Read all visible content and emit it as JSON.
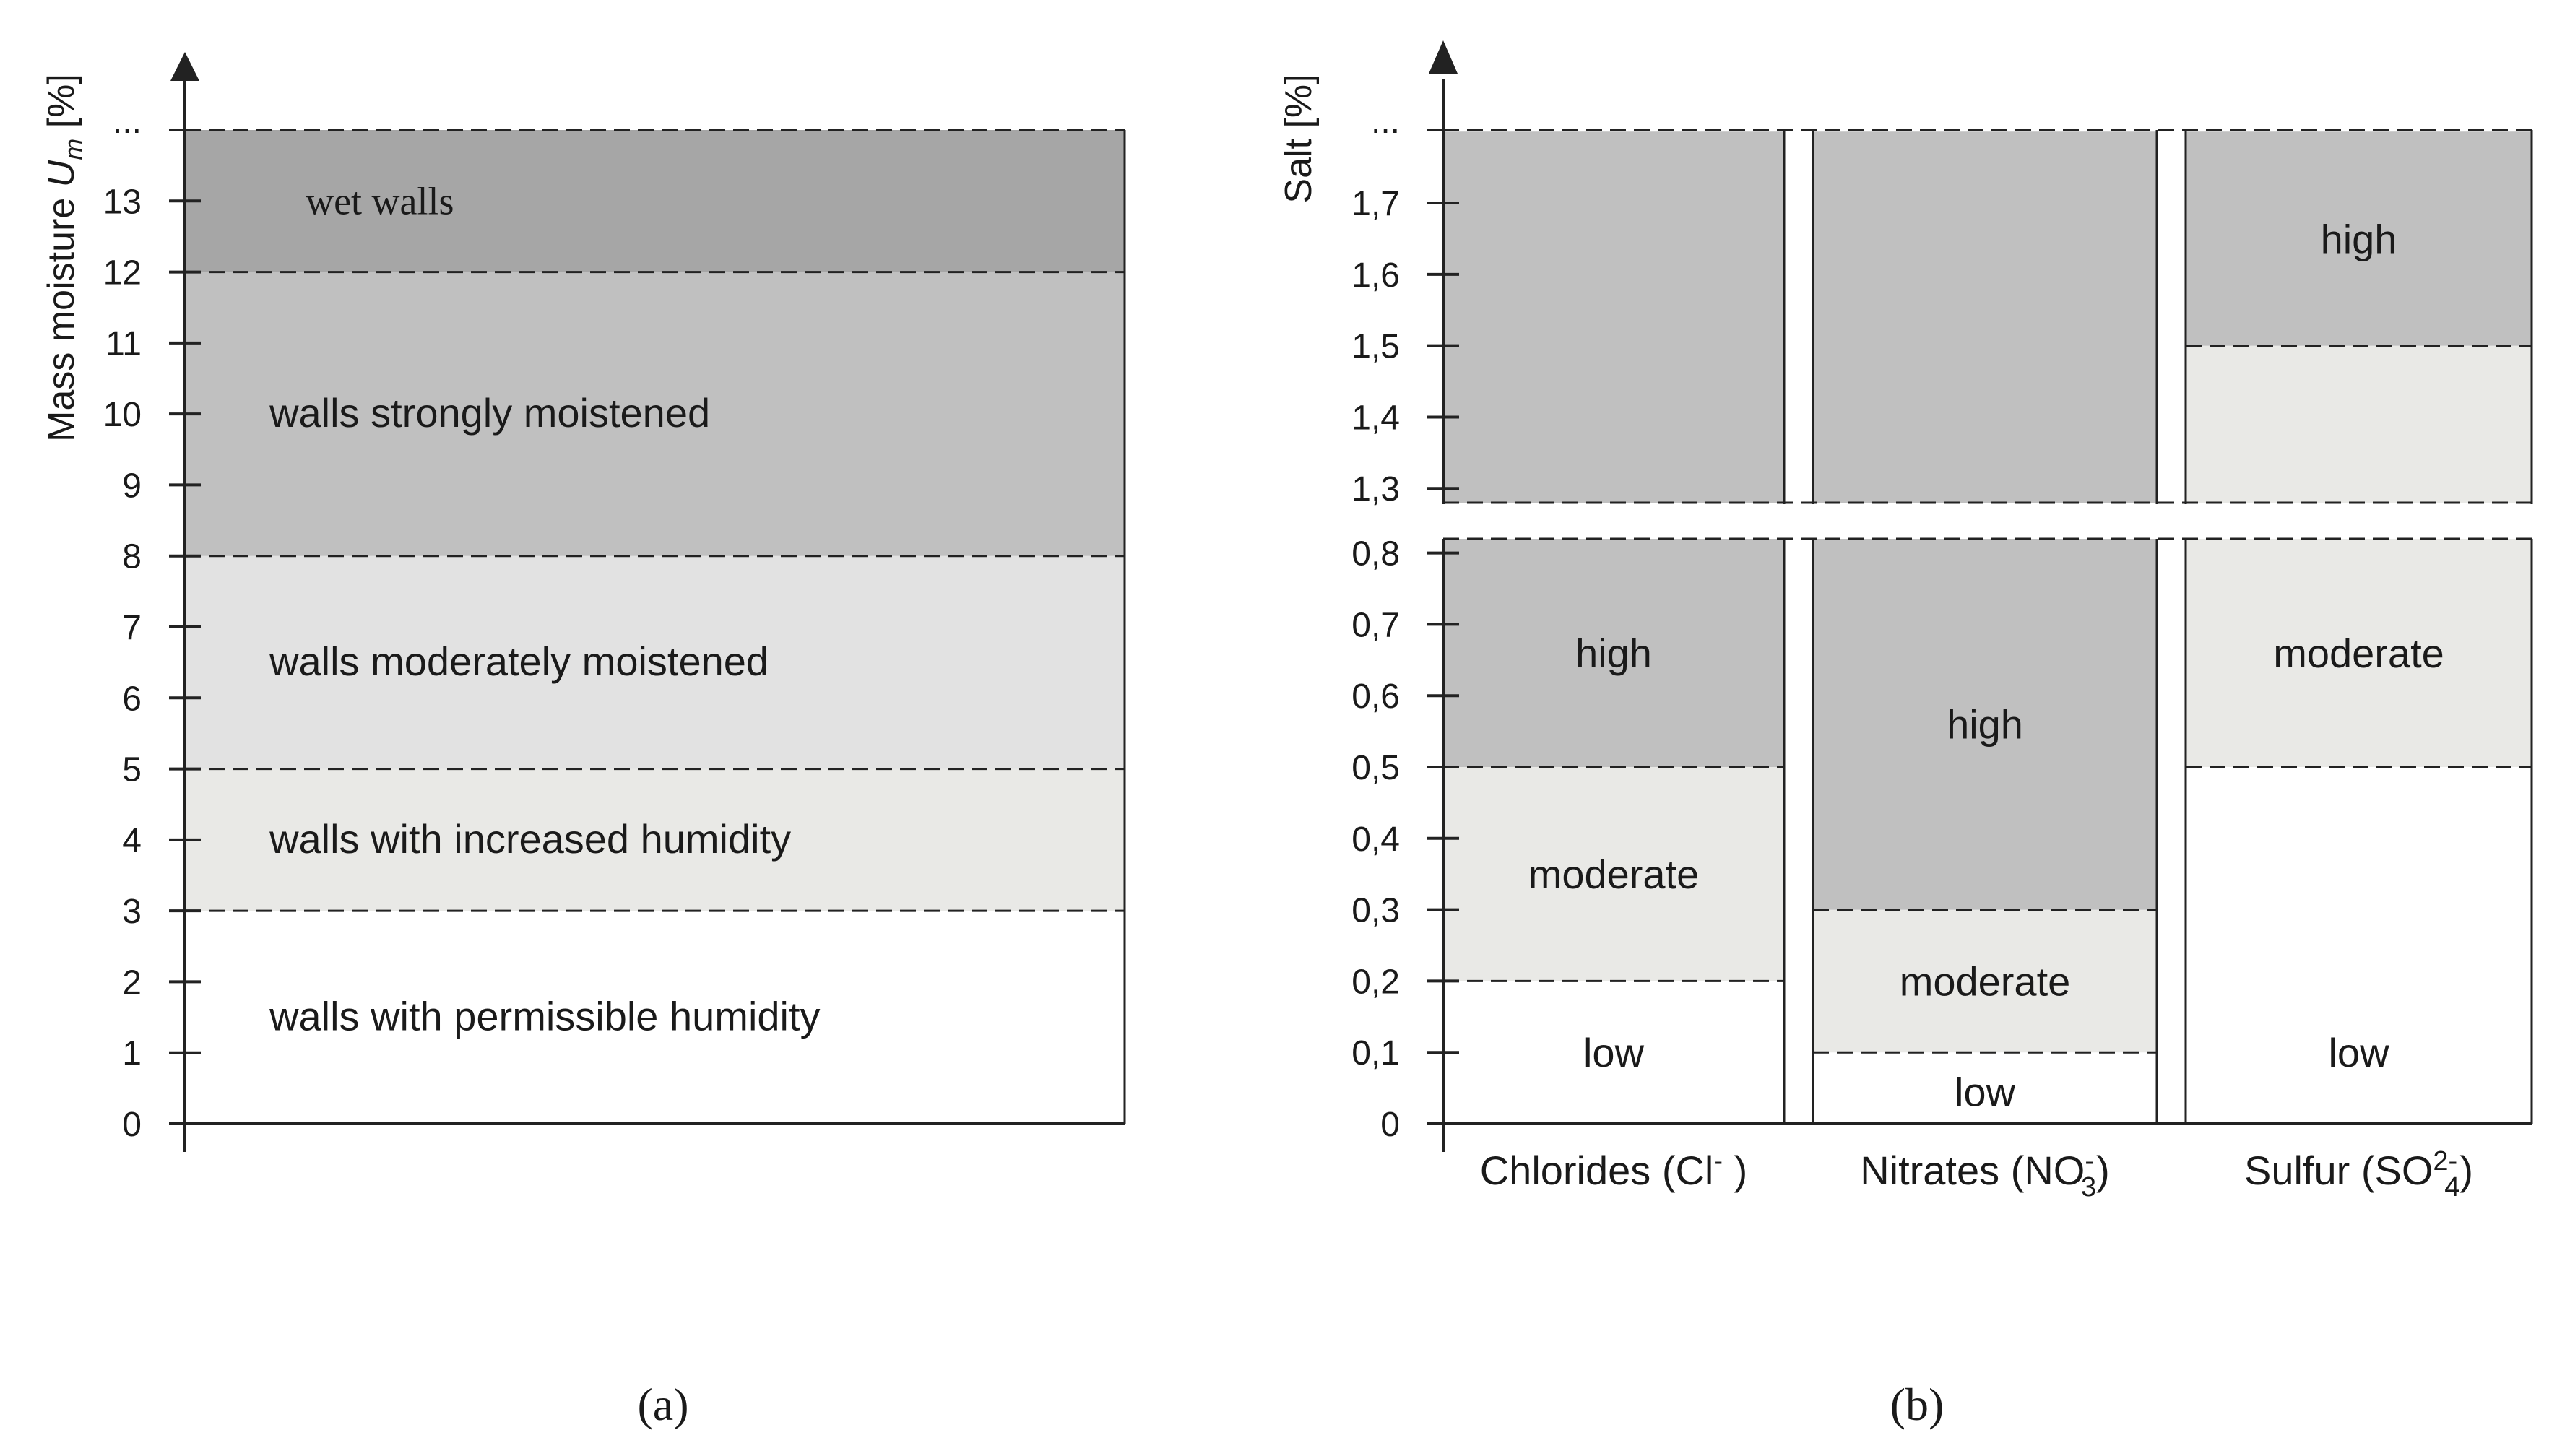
{
  "chart_data": [
    {
      "type": "stacked-range",
      "panel_label": "(a)",
      "ylabel_main": "Mass moisture ",
      "ylabel_var": "U",
      "ylabel_sub": "m",
      "ylabel_unit": " [%]",
      "ylim": [
        0,
        14
      ],
      "yticks": [
        "0",
        "1",
        "2",
        "3",
        "4",
        "5",
        "6",
        "7",
        "8",
        "9",
        "10",
        "11",
        "12",
        "13",
        "..."
      ],
      "bands": [
        {
          "label": "walls with permissible humidity",
          "from": 0,
          "to": 3,
          "color": "#ffffff"
        },
        {
          "label": "walls with increased humidity",
          "from": 3,
          "to": 5,
          "color": "#e9e9e6"
        },
        {
          "label": "walls moderately moistened",
          "from": 5,
          "to": 8,
          "color": "#e2e2e2"
        },
        {
          "label": "walls strongly moistened",
          "from": 8,
          "to": 12,
          "color": "#c0c0c0"
        },
        {
          "label": "wet walls",
          "from": 12,
          "to": 14,
          "color": "#a6a6a6"
        }
      ]
    },
    {
      "type": "stacked-range-broken-axis",
      "panel_label": "(b)",
      "ylabel": "Salt [%]",
      "yticks_lower": [
        "0",
        "0,1",
        "0,2",
        "0,3",
        "0,4",
        "0,5",
        "0,6",
        "0,7",
        "0,8"
      ],
      "yticks_upper": [
        "1,3",
        "1,4",
        "1,5",
        "1,6",
        "1,7",
        "..."
      ],
      "axis_break": [
        0.82,
        1.28
      ],
      "categories": [
        {
          "name": "Chlorides (Cl",
          "sup": "-",
          "sub": "",
          "close": " )"
        },
        {
          "name": "Nitrates (NO",
          "sup": "-",
          "sub": "3",
          "close": ")"
        },
        {
          "name": "Sulfur (SO",
          "sup": "2-",
          "sub": "4",
          "close": ")"
        }
      ],
      "series": [
        {
          "category": "Chlorides",
          "bands": [
            {
              "label": "low",
              "from": 0,
              "to": 0.2,
              "color": "#ffffff"
            },
            {
              "label": "moderate",
              "from": 0.2,
              "to": 0.5,
              "color": "#e9e9e6"
            },
            {
              "label": "high",
              "from": 0.5,
              "to": 1.8,
              "color": "#c0c0c0"
            }
          ]
        },
        {
          "category": "Nitrates",
          "bands": [
            {
              "label": "low",
              "from": 0,
              "to": 0.1,
              "color": "#ffffff"
            },
            {
              "label": "moderate",
              "from": 0.1,
              "to": 0.3,
              "color": "#e9e9e6"
            },
            {
              "label": "high",
              "from": 0.3,
              "to": 1.8,
              "color": "#c0c0c0"
            }
          ]
        },
        {
          "category": "Sulfur",
          "bands": [
            {
              "label": "low",
              "from": 0,
              "to": 0.5,
              "color": "#ffffff"
            },
            {
              "label": "moderate",
              "from": 0.5,
              "to": 1.5,
              "color": "#e9e9e6"
            },
            {
              "label": "high",
              "from": 1.5,
              "to": 1.8,
              "color": "#c0c0c0"
            }
          ]
        }
      ]
    }
  ]
}
